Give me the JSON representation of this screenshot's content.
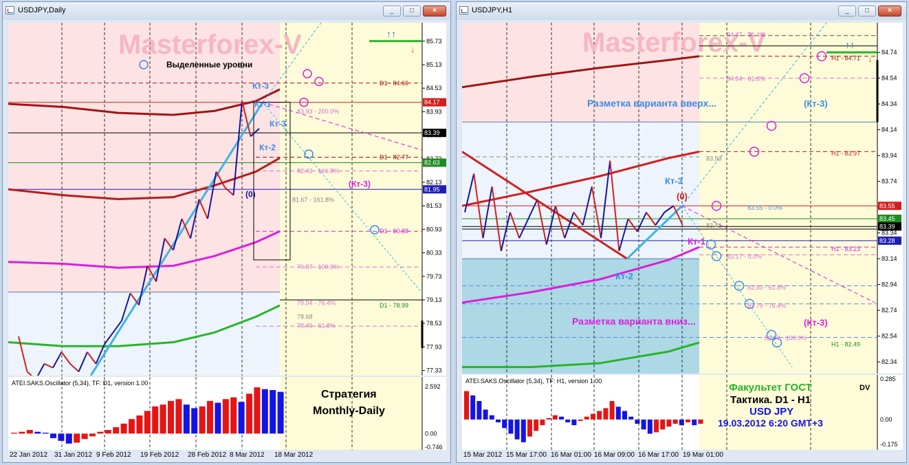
{
  "left_window": {
    "title": "USDJPY,Daily",
    "watermark": "Masterforex-V",
    "legend_text": "Выделенные уровни",
    "strategy_line1": "Стратегия",
    "strategy_line2": "Monthly-Daily",
    "oscillator_label": "ATEI.SAKS.Oscillator (5,34), TF: D1, version 1.00",
    "osc_axis": [
      "2.592",
      "0.00",
      "-0.746"
    ],
    "x_labels": [
      "22 Jan 2012",
      "31 Jan 2012",
      "9 Feb 2012",
      "19 Feb 2012",
      "28 Feb 2012",
      "8 Mar 2012",
      "18 Mar 2012"
    ],
    "annotations": [
      "Кт-3",
      "Кт-1",
      "Кт-3",
      "Кт-2",
      "(0)",
      "(Кт-3)"
    ],
    "level_labels": [
      "D1 - 84.66",
      "83.93 - 200.0%",
      "D1 - 82.77",
      "82.42 - 161.8%",
      "81.67 - 161.8%",
      "D1 - 80.88",
      "79.97 - 100.0%",
      "79.04 - 76.4%",
      "78.68",
      "78.46 - 61.8%",
      "D1 - 78.99"
    ],
    "arrows": [
      "↑↑",
      "↓"
    ]
  },
  "right_window": {
    "title": "USDJPY,H1",
    "watermark": "Masterforex-V",
    "text_up": "Разметка варианта вверх...",
    "text_down": "Разметка варианта вниз...",
    "faculty": "Факультет ГОСТ",
    "tactic": "Тактика. D1 - H1",
    "pair": "USD JPY",
    "datetime": "19.03.2012 6:20 GMT+3",
    "dv": "DV",
    "oscillator_label": "ATEI.SAKS.Oscillator (5,34), TF: H1, version 1.00",
    "osc_axis": [
      "0.285",
      "0.00",
      "-0.175"
    ],
    "x_labels": [
      "15 Mar 2012",
      "15 Mar 17:00",
      "16 Mar 01:00",
      "16 Mar 09:00",
      "16 Mar 17:00",
      "19 Mar 01:00"
    ],
    "annotations": [
      "(Кт-3)",
      "Кт-3",
      "(0)",
      "Кт-1",
      "Кт-2",
      "(Кт-3)"
    ],
    "level_labels": [
      "84.87 - 76.4%",
      "H1 - 84.71",
      "84.54 - 61.8%",
      "H1 - 83.97",
      "83.93",
      "83.55 - 0.0%",
      "83.41",
      "H1 - 83.23",
      "83.17 - 0.0%",
      "82.93 - 61.8%",
      "82.79 - 76.4%",
      "82.53 - 100.0%",
      "H1 - 82.49"
    ],
    "arrows": [
      "↑↑",
      "↓"
    ]
  },
  "chart_data": [
    {
      "type": "line",
      "title": "USDJPY,Daily",
      "xlabel": "",
      "ylabel": "",
      "ylim": [
        77.2,
        86.2
      ],
      "y_ticks": [
        85.73,
        85.13,
        84.53,
        83.93,
        83.33,
        82.73,
        82.13,
        81.53,
        80.93,
        80.33,
        79.73,
        79.13,
        78.53,
        77.93,
        77.33
      ],
      "price_tags": [
        {
          "value": 84.17,
          "label": "84.17",
          "color": "#d21e1e"
        },
        {
          "value": 83.39,
          "label": "83.39",
          "color": "#000000"
        },
        {
          "value": 82.63,
          "label": "82.63",
          "color": "#1e8c1e"
        },
        {
          "value": 81.95,
          "label": "81.95",
          "color": "#1e1eb4"
        }
      ],
      "price_path": [
        [
          0,
          78.2
        ],
        [
          1,
          77.3
        ],
        [
          2,
          77.1
        ],
        [
          3,
          77.5
        ],
        [
          4,
          77.4
        ],
        [
          5,
          77.8
        ],
        [
          6,
          77.5
        ],
        [
          7,
          77.3
        ],
        [
          8,
          77.8
        ],
        [
          9,
          77.5
        ],
        [
          10,
          78.0
        ],
        [
          11,
          78.3
        ],
        [
          12,
          78.6
        ],
        [
          13,
          79.3
        ],
        [
          14,
          79.0
        ],
        [
          15,
          80.0
        ],
        [
          16,
          79.6
        ],
        [
          17,
          80.7
        ],
        [
          18,
          80.4
        ],
        [
          19,
          81.2
        ],
        [
          20,
          80.7
        ],
        [
          21,
          81.7
        ],
        [
          22,
          81.2
        ],
        [
          23,
          82.4
        ],
        [
          24,
          82.0
        ],
        [
          25,
          81.8
        ],
        [
          26,
          84.2
        ],
        [
          27,
          83.3
        ],
        [
          28,
          83.5
        ]
      ],
      "series": [
        {
          "name": "D1 - 84.66",
          "color": "#a01414"
        },
        {
          "name": "D1 - 82.77",
          "color": "#b41e1e"
        },
        {
          "name": "D1 - 80.88",
          "color": "#dc1edc"
        },
        {
          "name": "D1 - 78.99",
          "color": "#28b428"
        }
      ],
      "oscillator": {
        "ylim": [
          -0.746,
          2.592
        ],
        "values": [
          0.05,
          0.1,
          0.2,
          0.1,
          0.05,
          -0.25,
          -0.4,
          -0.55,
          -0.5,
          -0.3,
          -0.15,
          0.1,
          0.2,
          0.35,
          0.55,
          0.8,
          1.0,
          1.25,
          1.5,
          1.6,
          1.8,
          1.9,
          1.6,
          1.4,
          1.5,
          1.8,
          1.7,
          1.9,
          2.0,
          1.75,
          2.2,
          2.55,
          2.45,
          2.4,
          2.3
        ]
      }
    },
    {
      "type": "line",
      "title": "USDJPY,H1",
      "xlabel": "",
      "ylabel": "",
      "ylim": [
        82.25,
        84.97
      ],
      "y_ticks": [
        84.74,
        84.54,
        84.34,
        84.14,
        83.94,
        83.74,
        83.54,
        83.34,
        83.14,
        82.94,
        82.74,
        82.54,
        82.34
      ],
      "price_tags": [
        {
          "value": 83.55,
          "label": "83.55",
          "color": "#d21e1e"
        },
        {
          "value": 83.45,
          "label": "83.45",
          "color": "#1e8c1e"
        },
        {
          "value": 83.39,
          "label": "83.39",
          "color": "#000000"
        },
        {
          "value": 83.28,
          "label": "83.28",
          "color": "#1e1eb4"
        }
      ],
      "price_path": [
        [
          0,
          83.5
        ],
        [
          1,
          83.8
        ],
        [
          2,
          83.3
        ],
        [
          3,
          83.7
        ],
        [
          4,
          83.2
        ],
        [
          5,
          83.5
        ],
        [
          6,
          83.3
        ],
        [
          7,
          83.45
        ],
        [
          8,
          83.6
        ],
        [
          9,
          83.25
        ],
        [
          10,
          83.55
        ],
        [
          11,
          83.3
        ],
        [
          12,
          83.5
        ],
        [
          13,
          83.4
        ],
        [
          14,
          83.7
        ],
        [
          15,
          83.3
        ],
        [
          16,
          83.9
        ],
        [
          17,
          83.2
        ],
        [
          18,
          83.45
        ],
        [
          19,
          83.35
        ],
        [
          20,
          83.5
        ],
        [
          21,
          83.4
        ],
        [
          22,
          83.5
        ],
        [
          23,
          83.55
        ],
        [
          24,
          83.4
        ]
      ],
      "series": [
        {
          "name": "H1 - 84.71",
          "color": "#a01414"
        },
        {
          "name": "H1 - 83.97",
          "color": "#d21e1e"
        },
        {
          "name": "H1 - 83.23",
          "color": "#dc1edc"
        },
        {
          "name": "H1 - 82.49",
          "color": "#28b428"
        }
      ],
      "oscillator": {
        "ylim": [
          -0.175,
          0.285
        ],
        "values": [
          0.2,
          0.17,
          0.13,
          0.07,
          0.03,
          -0.02,
          -0.06,
          -0.1,
          -0.14,
          -0.16,
          -0.12,
          -0.08,
          -0.04,
          0.01,
          0.03,
          0.02,
          -0.02,
          -0.04,
          -0.01,
          0.02,
          0.04,
          0.06,
          0.08,
          0.13,
          0.09,
          0.06,
          0.02,
          -0.03,
          -0.07,
          -0.1,
          -0.09,
          -0.07,
          -0.05,
          -0.03,
          -0.04,
          -0.02,
          -0.04,
          -0.03
        ]
      }
    }
  ]
}
